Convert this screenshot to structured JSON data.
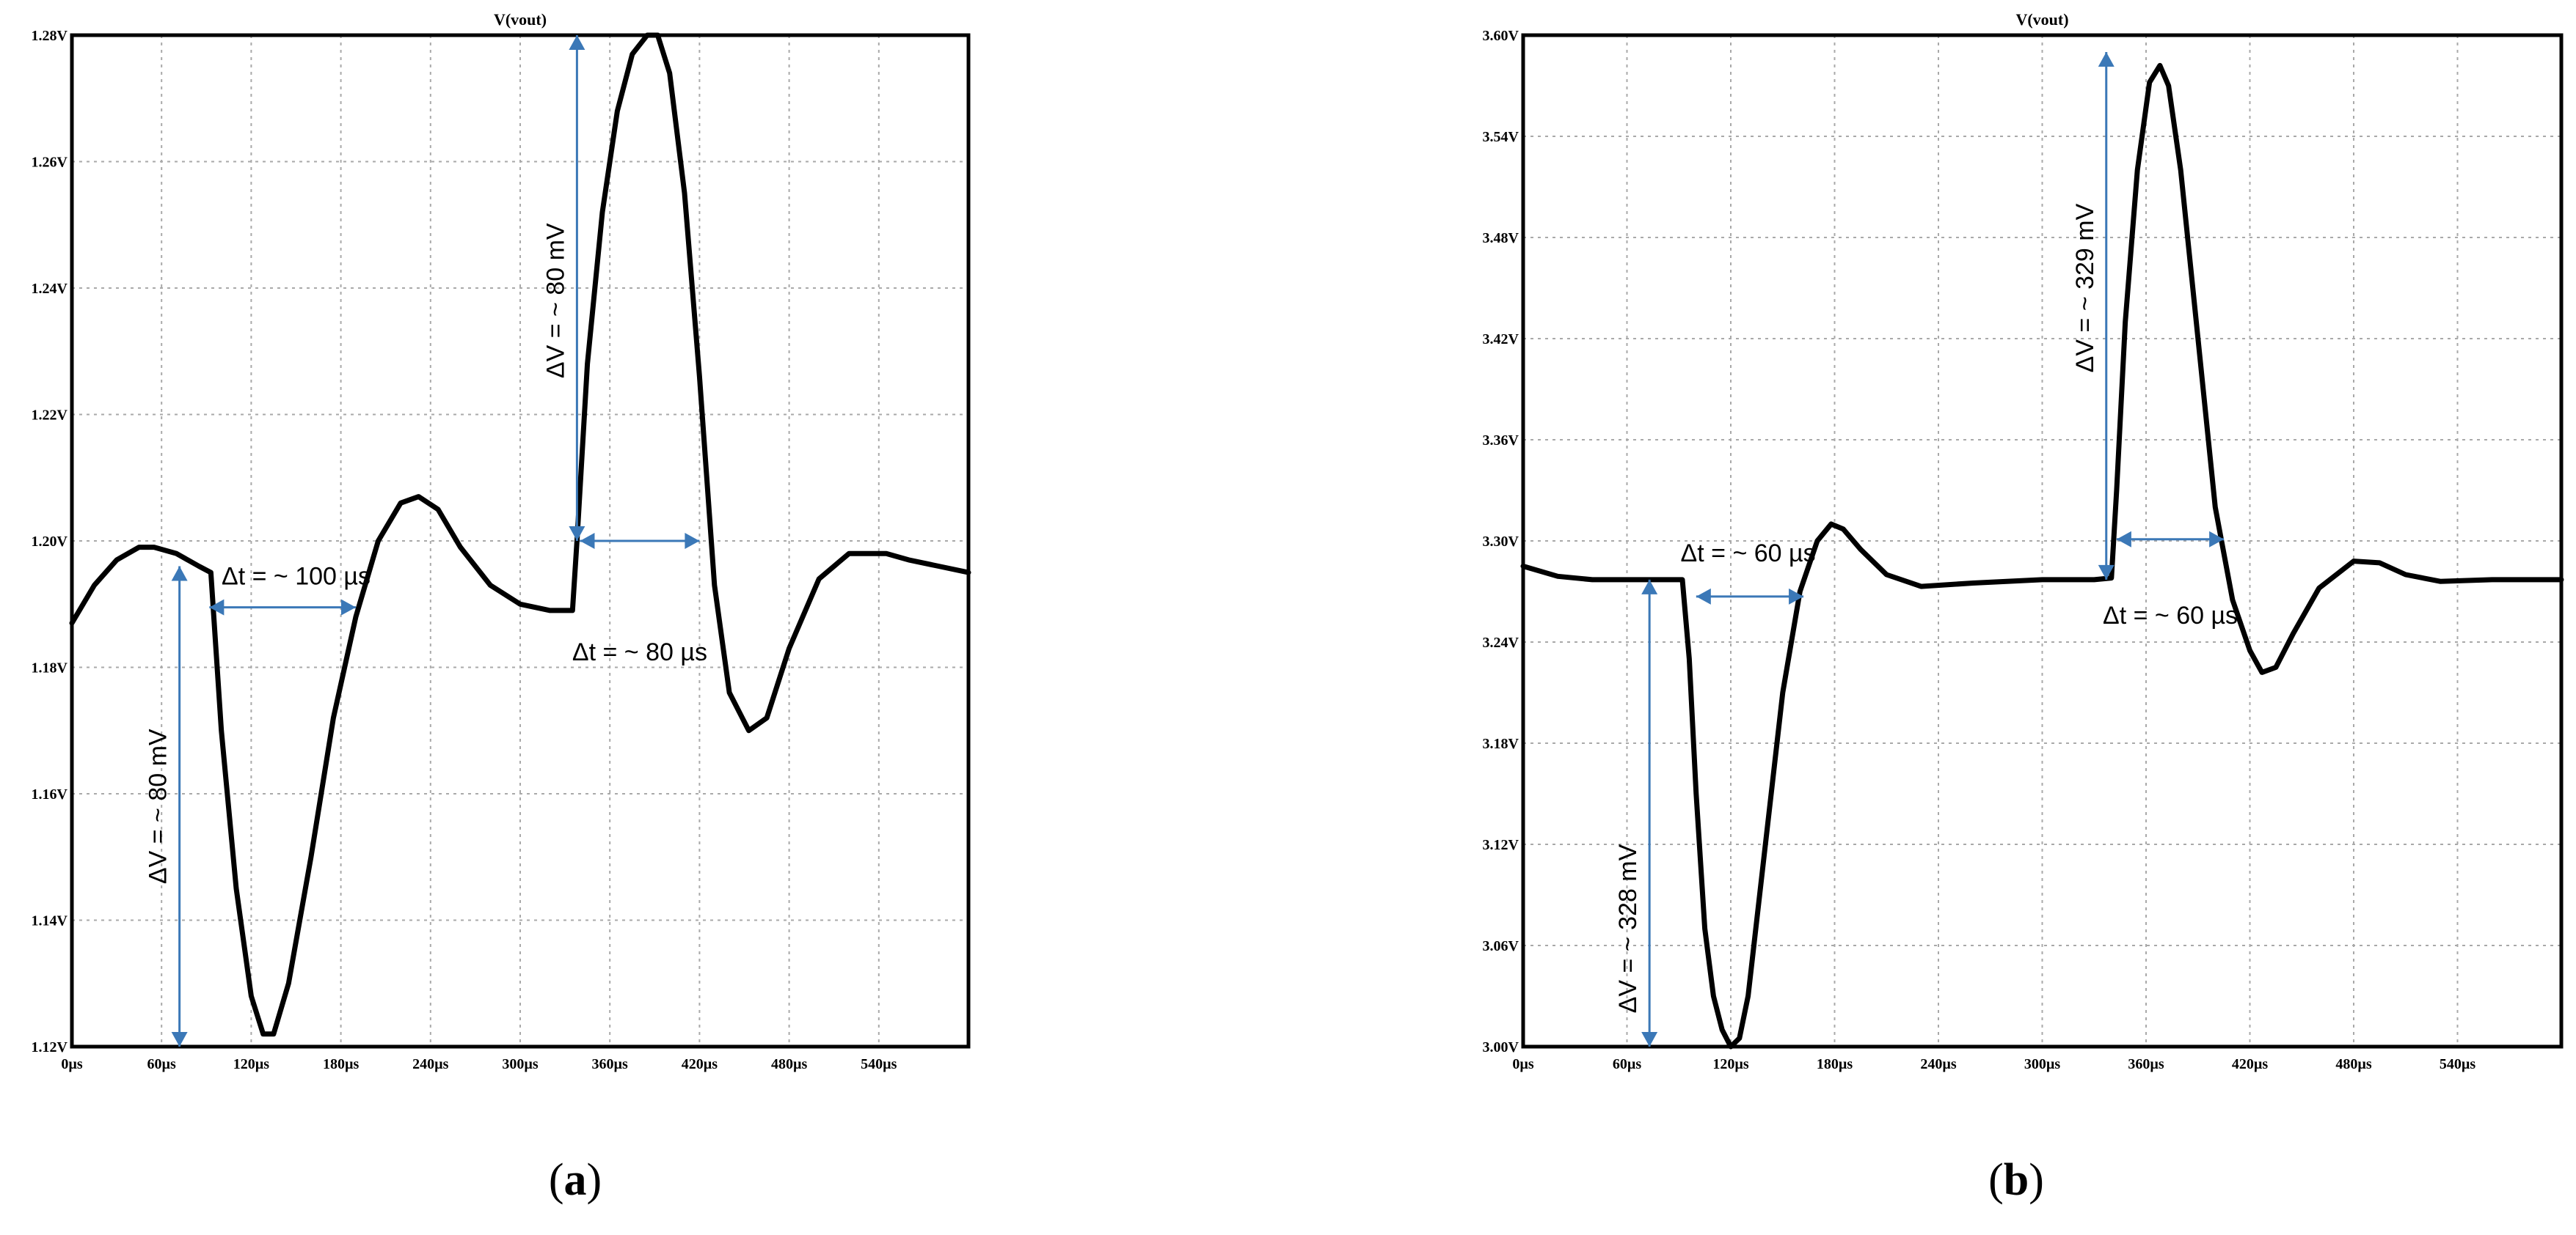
{
  "colors": {
    "trace": "#000000",
    "grid": "#a9a9a9",
    "axis": "#000000",
    "annotation": "#3b78b7"
  },
  "panels": [
    {
      "caption_open": "(",
      "caption_letter": "a",
      "caption_close": ")"
    },
    {
      "caption_open": "(",
      "caption_letter": "b",
      "caption_close": ")"
    }
  ],
  "chart_data": [
    {
      "type": "line",
      "title": "V(vout)",
      "xlabel": "",
      "ylabel": "",
      "xlim": [
        0,
        600
      ],
      "ylim": [
        1.12,
        1.28
      ],
      "grid": true,
      "x_ticks": [
        0,
        60,
        120,
        180,
        240,
        300,
        360,
        420,
        480,
        540
      ],
      "x_tick_labels": [
        "0µs",
        "60µs",
        "120µs",
        "180µs",
        "240µs",
        "300µs",
        "360µs",
        "420µs",
        "480µs",
        "540µs"
      ],
      "y_ticks": [
        1.12,
        1.14,
        1.16,
        1.18,
        1.2,
        1.22,
        1.24,
        1.26,
        1.28
      ],
      "y_tick_labels": [
        "1.12V",
        "1.14V",
        "1.16V",
        "1.18V",
        "1.20V",
        "1.22V",
        "1.24V",
        "1.26V",
        "1.28V"
      ],
      "series": [
        {
          "x": [
            0,
            15,
            30,
            45,
            55,
            70,
            85,
            93,
            100,
            110,
            120,
            128,
            135,
            145,
            160,
            175,
            190,
            205,
            220,
            232,
            245,
            260,
            280,
            300,
            320,
            335,
            338,
            345,
            355,
            365,
            375,
            385,
            392,
            400,
            410,
            420,
            430,
            440,
            453,
            465,
            480,
            500,
            520,
            545,
            560,
            580,
            600
          ],
          "y": [
            1.187,
            1.193,
            1.197,
            1.199,
            1.199,
            1.198,
            1.196,
            1.195,
            1.17,
            1.145,
            1.128,
            1.122,
            1.122,
            1.13,
            1.15,
            1.172,
            1.188,
            1.2,
            1.206,
            1.207,
            1.205,
            1.199,
            1.193,
            1.19,
            1.189,
            1.189,
            1.2,
            1.228,
            1.252,
            1.268,
            1.277,
            1.28,
            1.28,
            1.274,
            1.255,
            1.226,
            1.193,
            1.176,
            1.17,
            1.172,
            1.183,
            1.194,
            1.198,
            1.198,
            1.197,
            1.196,
            1.195
          ]
        }
      ],
      "annotations": {
        "dv_left": "ΔV = ~ 80 mV",
        "dt_left": "Δt = ~ 100 µs",
        "dv_right": "ΔV = ~ 80 mV",
        "dt_right": "Δt = ~ 80 µs"
      }
    },
    {
      "type": "line",
      "title": "V(vout)",
      "xlabel": "",
      "ylabel": "",
      "xlim": [
        0,
        600
      ],
      "ylim": [
        3.0,
        3.6
      ],
      "grid": true,
      "x_ticks": [
        0,
        60,
        120,
        180,
        240,
        300,
        360,
        420,
        480,
        540
      ],
      "x_tick_labels": [
        "0µs",
        "60µs",
        "120µs",
        "180µs",
        "240µs",
        "300µs",
        "360µs",
        "420µs",
        "480µs",
        "540µs"
      ],
      "y_ticks": [
        3.0,
        3.06,
        3.12,
        3.18,
        3.24,
        3.3,
        3.36,
        3.42,
        3.48,
        3.54,
        3.6
      ],
      "y_tick_labels": [
        "3.00V",
        "3.06V",
        "3.12V",
        "3.18V",
        "3.24V",
        "3.30V",
        "3.36V",
        "3.42V",
        "3.48V",
        "3.54V",
        "3.60V"
      ],
      "series": [
        {
          "x": [
            0,
            20,
            40,
            60,
            80,
            92,
            96,
            100,
            105,
            110,
            115,
            120,
            125,
            130,
            140,
            150,
            160,
            170,
            178,
            185,
            195,
            210,
            230,
            260,
            300,
            330,
            340,
            343,
            348,
            355,
            362,
            368,
            373,
            380,
            390,
            400,
            410,
            420,
            427,
            435,
            445,
            460,
            480,
            495,
            510,
            530,
            560,
            600
          ],
          "y": [
            3.285,
            3.279,
            3.277,
            3.277,
            3.277,
            3.277,
            3.23,
            3.15,
            3.07,
            3.03,
            3.01,
            3.0,
            3.005,
            3.03,
            3.12,
            3.21,
            3.27,
            3.3,
            3.31,
            3.307,
            3.295,
            3.28,
            3.273,
            3.275,
            3.277,
            3.277,
            3.278,
            3.33,
            3.43,
            3.52,
            3.572,
            3.582,
            3.57,
            3.52,
            3.42,
            3.32,
            3.265,
            3.235,
            3.222,
            3.225,
            3.245,
            3.272,
            3.288,
            3.287,
            3.28,
            3.276,
            3.277,
            3.277
          ]
        }
      ],
      "annotations": {
        "dv_left": "ΔV = ~ 328 mV",
        "dt_left": "Δt = ~ 60 µs",
        "dv_right": "ΔV = ~ 329 mV",
        "dt_right": "Δt = ~ 60 µs"
      }
    }
  ]
}
